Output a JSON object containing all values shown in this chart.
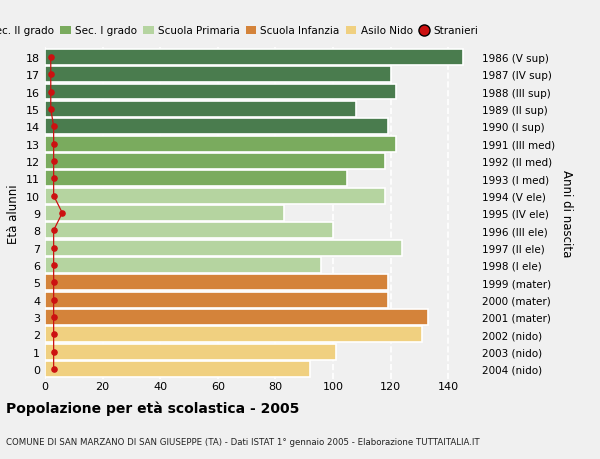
{
  "ages": [
    18,
    17,
    16,
    15,
    14,
    13,
    12,
    11,
    10,
    9,
    8,
    7,
    6,
    5,
    4,
    3,
    2,
    1,
    0
  ],
  "right_labels": [
    "1986 (V sup)",
    "1987 (IV sup)",
    "1988 (III sup)",
    "1989 (II sup)",
    "1990 (I sup)",
    "1991 (III med)",
    "1992 (II med)",
    "1993 (I med)",
    "1994 (V ele)",
    "1995 (IV ele)",
    "1996 (III ele)",
    "1997 (II ele)",
    "1998 (I ele)",
    "1999 (mater)",
    "2000 (mater)",
    "2001 (mater)",
    "2002 (nido)",
    "2003 (nido)",
    "2004 (nido)"
  ],
  "bar_values": [
    145,
    120,
    122,
    108,
    119,
    122,
    118,
    105,
    118,
    83,
    100,
    124,
    96,
    119,
    119,
    133,
    131,
    101,
    92
  ],
  "bar_colors": [
    "#4a7c4e",
    "#4a7c4e",
    "#4a7c4e",
    "#4a7c4e",
    "#4a7c4e",
    "#7aab5e",
    "#7aab5e",
    "#7aab5e",
    "#b5d4a0",
    "#b5d4a0",
    "#b5d4a0",
    "#b5d4a0",
    "#b5d4a0",
    "#d4833a",
    "#d4833a",
    "#d4833a",
    "#f0d080",
    "#f0d080",
    "#f0d080"
  ],
  "stranieri_values": [
    2,
    2,
    2,
    2,
    3,
    3,
    3,
    3,
    3,
    6,
    3,
    3,
    3,
    3,
    3,
    3,
    3,
    3,
    3
  ],
  "legend_labels": [
    "Sec. II grado",
    "Sec. I grado",
    "Scuola Primaria",
    "Scuola Infanzia",
    "Asilo Nido",
    "Stranieri"
  ],
  "legend_colors": [
    "#4a7c4e",
    "#7aab5e",
    "#b5d4a0",
    "#d4833a",
    "#f0d080",
    "#cc1111"
  ],
  "title": "Popolazione per età scolastica - 2005",
  "subtitle": "COMUNE DI SAN MARZANO DI SAN GIUSEPPE (TA) - Dati ISTAT 1° gennaio 2005 - Elaborazione TUTTAITALIA.IT",
  "ylabel_left": "Età alunni",
  "ylabel_right": "Anni di nascita",
  "xlim": [
    0,
    150
  ],
  "xticks": [
    0,
    20,
    40,
    60,
    80,
    100,
    120,
    140
  ],
  "bg_color": "#f0f0f0",
  "bar_height": 0.92
}
